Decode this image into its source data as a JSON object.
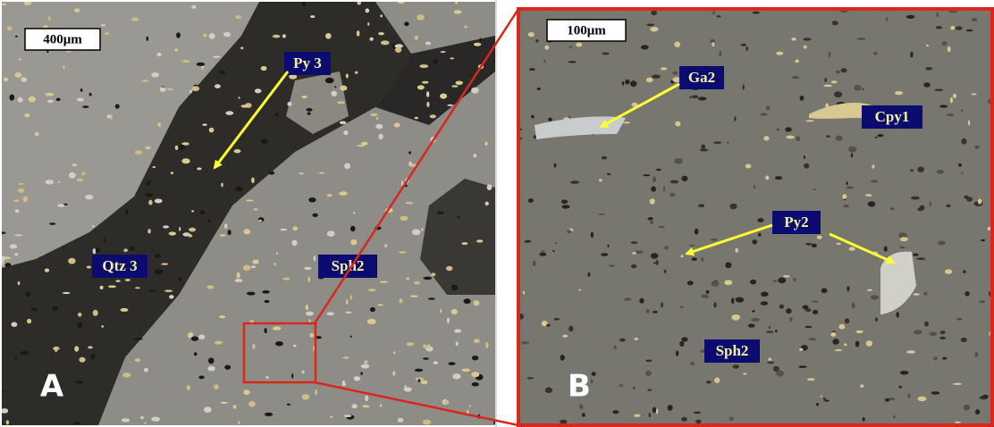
{
  "panels": [
    {
      "letter": "A",
      "scale_bar": "400μm",
      "labels": [
        "Py 3",
        "Qtz 3",
        "Sph2"
      ]
    },
    {
      "letter": "B",
      "scale_bar": "100μm",
      "labels": [
        "Ga2",
        "Cpy1",
        "Py2",
        "Sph2"
      ]
    }
  ]
}
